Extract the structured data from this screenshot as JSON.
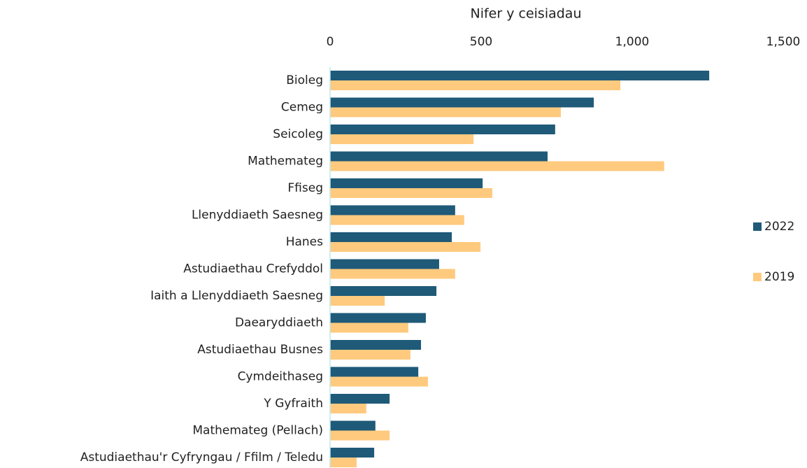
{
  "chart_data": {
    "type": "bar",
    "orientation": "horizontal",
    "x_label": "Nifer y ceisiadau",
    "categories": [
      "Bioleg",
      "Cemeg",
      "Seicoleg",
      "Mathemateg",
      "Ffiseg",
      "Llenyddiaeth Saesneg",
      "Hanes",
      "Astudiaethau Crefyddol",
      "Iaith a Llenyddiaeth Saesneg",
      "Daearyddiaeth",
      "Astudiaethau Busnes",
      "Cymdeithaseg",
      "Y Gyfraith",
      "Mathemateg (Pellach)",
      "Astudiaethau'r Cyfryngau / Ffilm / Teledu"
    ],
    "series": [
      {
        "name": "2022",
        "color": "#1f5a78",
        "values": [
          1255,
          873,
          745,
          720,
          505,
          414,
          403,
          361,
          352,
          317,
          301,
          292,
          197,
          150,
          146
        ]
      },
      {
        "name": "2019",
        "color": "#ffca7e",
        "values": [
          961,
          764,
          475,
          1106,
          537,
          444,
          498,
          414,
          181,
          259,
          266,
          324,
          120,
          197,
          88
        ]
      }
    ],
    "xlim": [
      0,
      1500
    ],
    "xticks": [
      0,
      500,
      {
        "value": 1000,
        "label": "1,000"
      },
      {
        "value": 1500,
        "label": "1,500"
      }
    ],
    "legend": "right"
  }
}
